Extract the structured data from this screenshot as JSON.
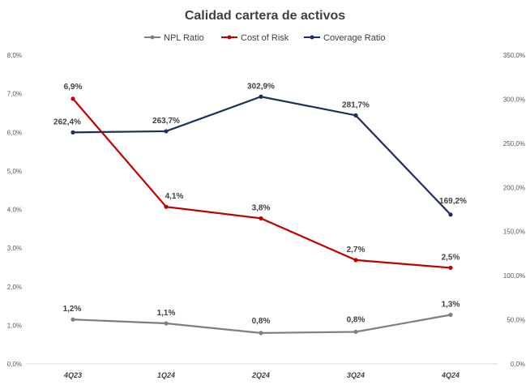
{
  "chart_data": {
    "type": "line",
    "title": "Calidad cartera de activos",
    "categories": [
      "4Q23",
      "1Q24",
      "2Q24",
      "3Q24",
      "4Q24"
    ],
    "y_left": {
      "min": 0,
      "max": 8,
      "step": 1,
      "ticks": [
        "0,0%",
        "1,0%",
        "2,0%",
        "3,0%",
        "4,0%",
        "5,0%",
        "6,0%",
        "7,0%",
        "8,0%"
      ]
    },
    "y_right": {
      "min": 0,
      "max": 350,
      "step": 50,
      "ticks": [
        "0,0%",
        "50,0%",
        "100,0%",
        "150,0%",
        "200,0%",
        "250,0%",
        "300,0%",
        "350,0%"
      ]
    },
    "grid": false,
    "legend_position": "top",
    "series": [
      {
        "name": "NPL Ratio",
        "axis": "left",
        "color": "#7f7f7f",
        "values": [
          1.15,
          1.05,
          0.8,
          0.83,
          1.27
        ],
        "labels": [
          "1,2%",
          "1,1%",
          "0,8%",
          "0,8%",
          "1,3%"
        ]
      },
      {
        "name": "Cost of Risk",
        "axis": "left",
        "color": "#c00000",
        "values": [
          6.87,
          4.07,
          3.77,
          2.69,
          2.49
        ],
        "labels": [
          "6,9%",
          "4,1%",
          "3,8%",
          "2,7%",
          "2,5%"
        ]
      },
      {
        "name": "Coverage Ratio",
        "axis": "right",
        "color": "#1f2f5c",
        "values": [
          262.4,
          263.7,
          302.9,
          281.7,
          169.2
        ],
        "labels": [
          "262,4%",
          "263,7%",
          "302,9%",
          "281,7%",
          "169,2%"
        ]
      }
    ]
  }
}
